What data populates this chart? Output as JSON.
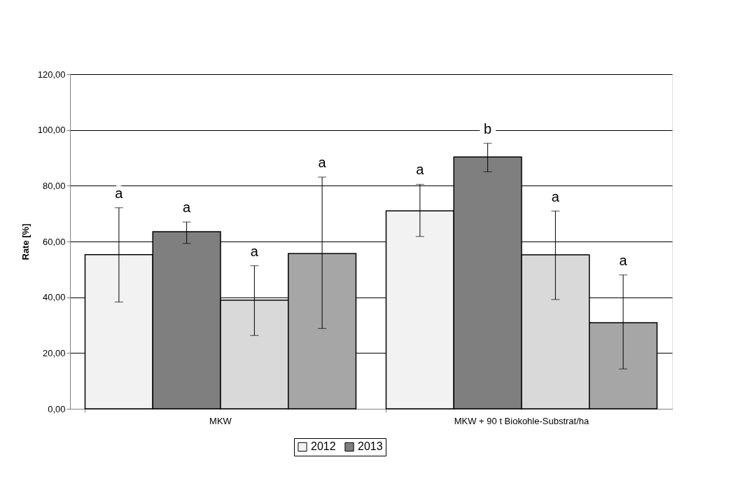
{
  "chart_data": {
    "type": "bar",
    "categories": [
      "MKW",
      "MKW + 90 t Biokohle-Substrat/ha"
    ],
    "ylabel": "Rate [%]",
    "ylim": [
      0,
      120
    ],
    "yticks": [
      {
        "value": 0,
        "label": "0,00"
      },
      {
        "value": 20,
        "label": "20,00"
      },
      {
        "value": 40,
        "label": "40,00"
      },
      {
        "value": 60,
        "label": "60,00"
      },
      {
        "value": 80,
        "label": "80,00"
      },
      {
        "value": 100,
        "label": "100,00"
      },
      {
        "value": 120,
        "label": "120,00"
      }
    ],
    "series": [
      {
        "name": "2012",
        "color": "#f2f2f2",
        "values": [
          55.3,
          71.0
        ],
        "errors": [
          [
            38.3,
            72.1
          ],
          [
            61.8,
            80.5
          ]
        ]
      },
      {
        "name": "2013",
        "color": "#7f7f7f",
        "values": [
          63.5,
          90.3
        ],
        "errors": [
          [
            59.3,
            67.0
          ],
          [
            85.0,
            95.2
          ]
        ]
      },
      {
        "color": "#d9d9d9",
        "values": [
          39.0,
          55.2
        ],
        "errors": [
          [
            26.3,
            51.3
          ],
          [
            39.2,
            70.9
          ]
        ]
      },
      {
        "color": "#a6a6a6",
        "values": [
          55.7,
          30.9
        ],
        "errors": [
          [
            28.8,
            83.1
          ],
          [
            14.3,
            48.0
          ]
        ]
      }
    ],
    "annotations": [
      "a",
      "a",
      "a",
      "a",
      "a",
      "b",
      "a",
      "a"
    ],
    "grid": "y",
    "legend": "bottom"
  }
}
